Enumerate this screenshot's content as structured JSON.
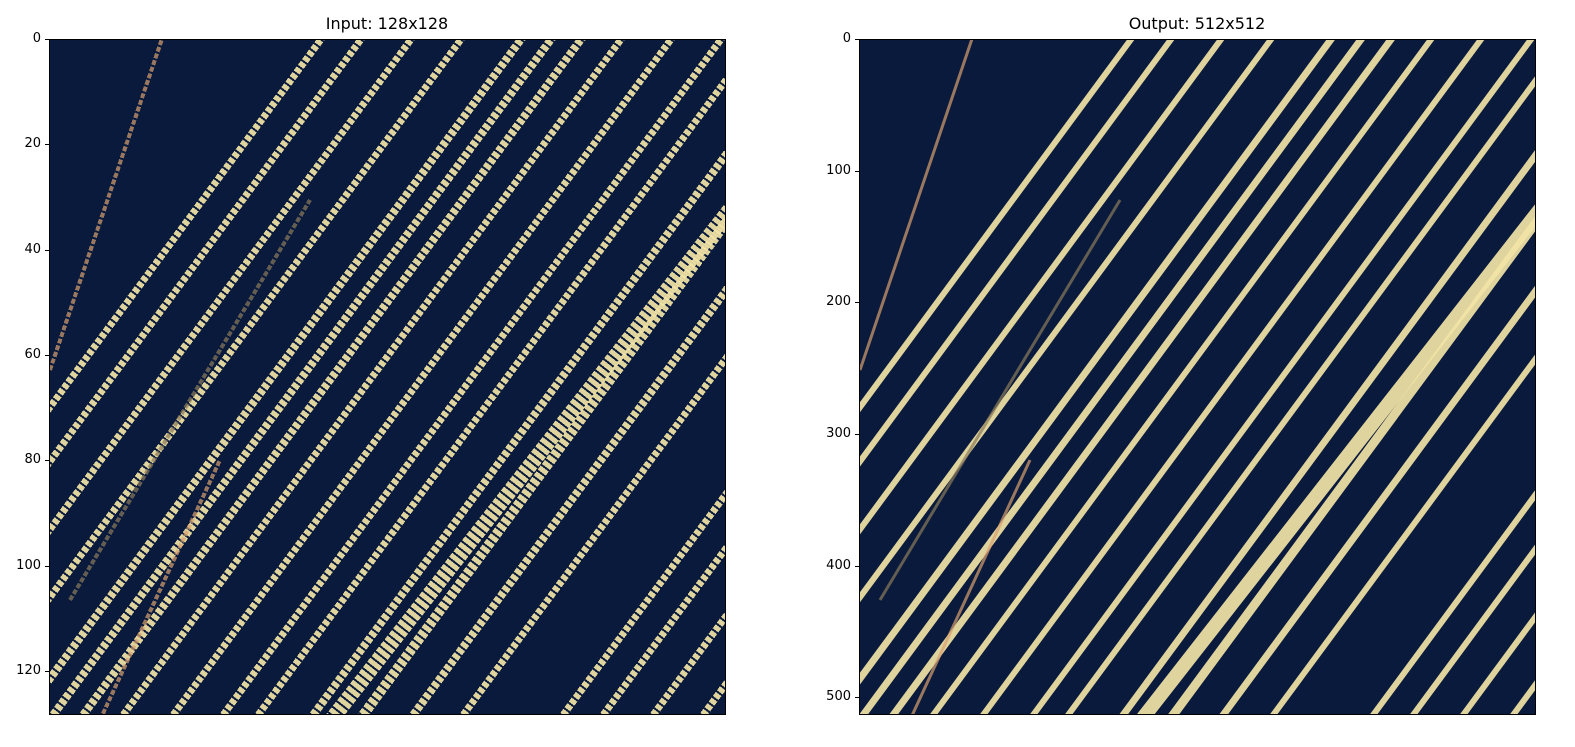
{
  "figure": {
    "panels": [
      {
        "title": "Input: 128x128",
        "y_ticks": [
          "0",
          "20",
          "40",
          "60",
          "80",
          "100",
          "120"
        ],
        "y_tick_values": [
          0,
          20,
          40,
          60,
          80,
          100,
          120
        ],
        "y_max": 128,
        "pixelated": true
      },
      {
        "title": "Output: 512x512",
        "y_ticks": [
          "0",
          "100",
          "200",
          "300",
          "400",
          "500"
        ],
        "y_tick_values": [
          0,
          100,
          200,
          300,
          400,
          500
        ],
        "y_max": 512,
        "pixelated": false
      }
    ],
    "colors": {
      "background": "#0a1a3c",
      "streak": "#f3e4a7",
      "streak_warm": "#d8a070",
      "streak_dim": "#8a7a5a"
    }
  }
}
